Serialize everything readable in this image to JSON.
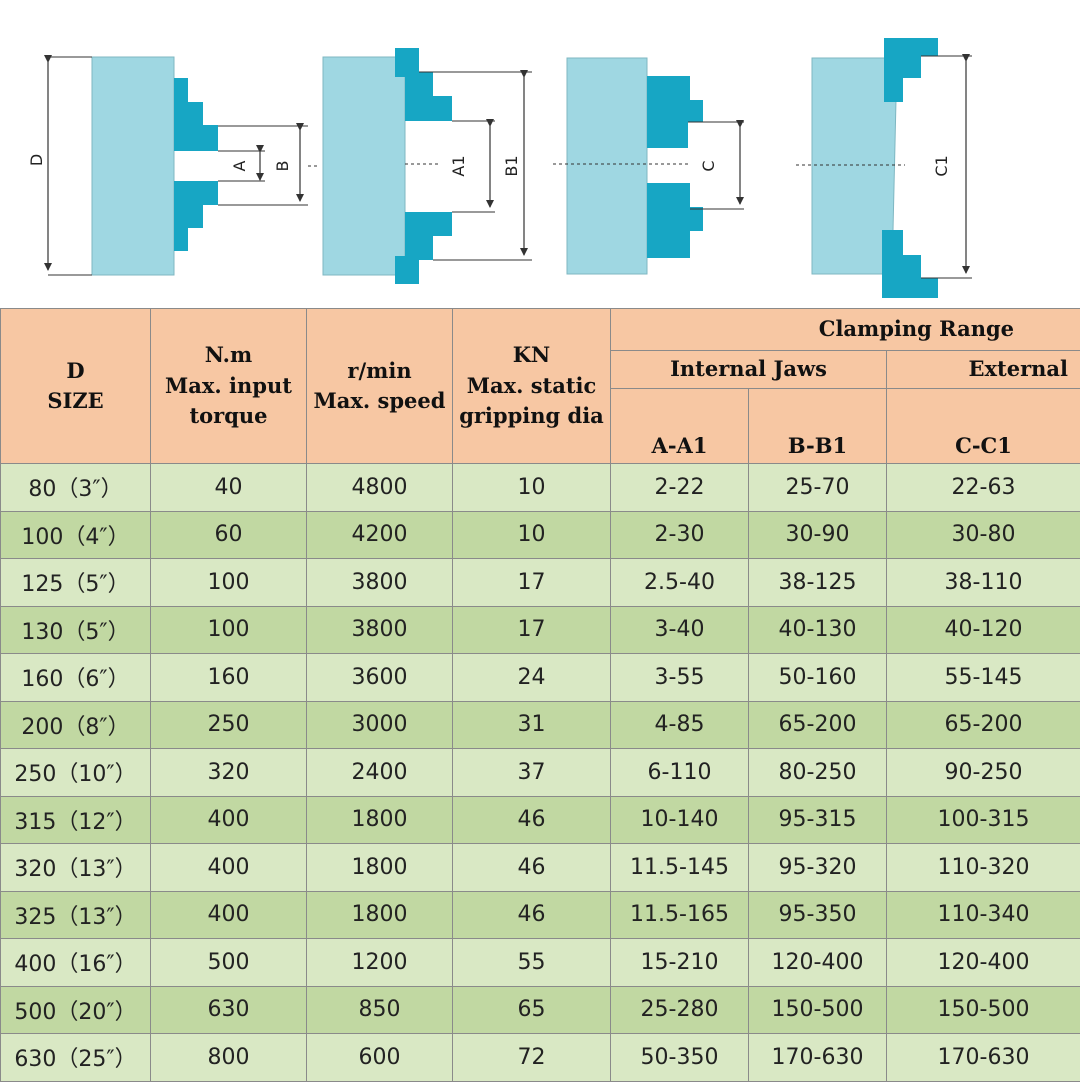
{
  "diagram": {
    "labels": {
      "d": "D",
      "a": "A",
      "b": "B",
      "a1": "A1",
      "b1": "B1",
      "c": "C",
      "c1": "C1"
    },
    "colors": {
      "body": "#9fd7e2",
      "jaw": "#17a6c4",
      "line": "#333333"
    }
  },
  "table": {
    "headers": {
      "size_line1": "D",
      "size_line2": "SIZE",
      "torque_line1": "N.m",
      "torque_line2": "Max. input",
      "torque_line3": "torque",
      "speed_line1": "r/min",
      "speed_line2": "Max. speed",
      "grip_line1": "KN",
      "grip_line2": "Max. static",
      "grip_line3": "gripping dia",
      "clamping_range": "Clamping Range",
      "internal_jaws": "Internal Jaws",
      "external": "External",
      "a_a1": "A-A1",
      "b_b1": "B-B1",
      "c_c1": "C-C1"
    },
    "rows": [
      [
        "80（3″）",
        "40",
        "4800",
        "10",
        "2-22",
        "25-70",
        "22-63"
      ],
      [
        "100（4″）",
        "60",
        "4200",
        "10",
        "2-30",
        "30-90",
        "30-80"
      ],
      [
        "125（5″）",
        "100",
        "3800",
        "17",
        "2.5-40",
        "38-125",
        "38-110"
      ],
      [
        "130（5″）",
        "100",
        "3800",
        "17",
        "3-40",
        "40-130",
        "40-120"
      ],
      [
        "160（6″）",
        "160",
        "3600",
        "24",
        "3-55",
        "50-160",
        "55-145"
      ],
      [
        "200（8″）",
        "250",
        "3000",
        "31",
        "4-85",
        "65-200",
        "65-200"
      ],
      [
        "250（10″）",
        "320",
        "2400",
        "37",
        "6-110",
        "80-250",
        "90-250"
      ],
      [
        "315（12″）",
        "400",
        "1800",
        "46",
        "10-140",
        "95-315",
        "100-315"
      ],
      [
        "320（13″）",
        "400",
        "1800",
        "46",
        "11.5-145",
        "95-320",
        "110-320"
      ],
      [
        "325（13″）",
        "400",
        "1800",
        "46",
        "11.5-165",
        "95-350",
        "110-340"
      ],
      [
        "400（16″）",
        "500",
        "1200",
        "55",
        "15-210",
        "120-400",
        "120-400"
      ],
      [
        "500（20″）",
        "630",
        "850",
        "65",
        "25-280",
        "150-500",
        "150-500"
      ],
      [
        "630（25″）",
        "800",
        "600",
        "72",
        "50-350",
        "170-630",
        "170-630"
      ]
    ]
  }
}
